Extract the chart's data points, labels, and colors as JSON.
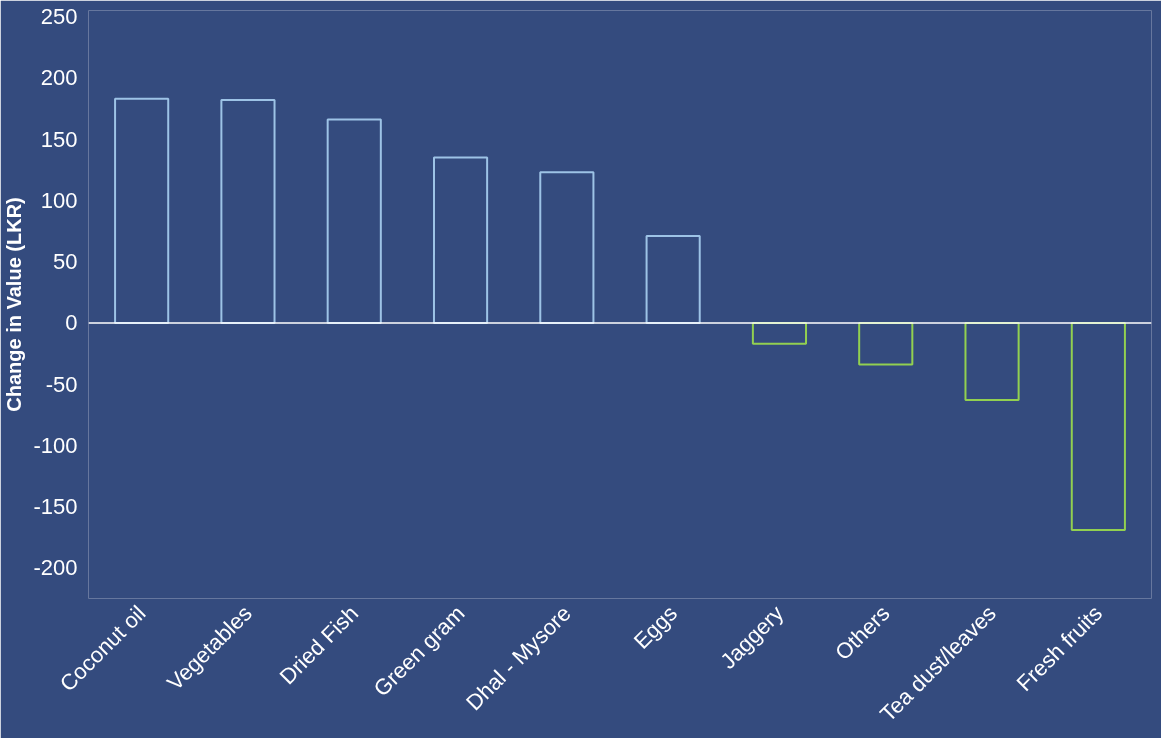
{
  "chart_data": {
    "type": "bar",
    "ylabel": "Change in Value (LKR)",
    "categories": [
      "Coconut oil",
      "Vegetables",
      "Dried Fish",
      "Green gram",
      "Dhal - Mysore",
      "Eggs",
      "Jaggery",
      "Others",
      "Tea dust/leaves",
      "Fresh fruits"
    ],
    "values": [
      183,
      182,
      166,
      135,
      123,
      71,
      -17,
      -34,
      -63,
      -169
    ],
    "colors": [
      "#9dc3e6",
      "#9dc3e6",
      "#9dc3e6",
      "#9dc3e6",
      "#9dc3e6",
      "#9dc3e6",
      "#92d050",
      "#92d050",
      "#92d050",
      "#92d050"
    ],
    "ylim": [
      -225,
      255
    ],
    "yticks": [
      -200,
      -150,
      -100,
      -50,
      0,
      50,
      100,
      150,
      200,
      250
    ],
    "ref_lines": [
      {
        "axis": "y",
        "value": 0,
        "color": "#ffffff"
      }
    ],
    "grid": false
  }
}
